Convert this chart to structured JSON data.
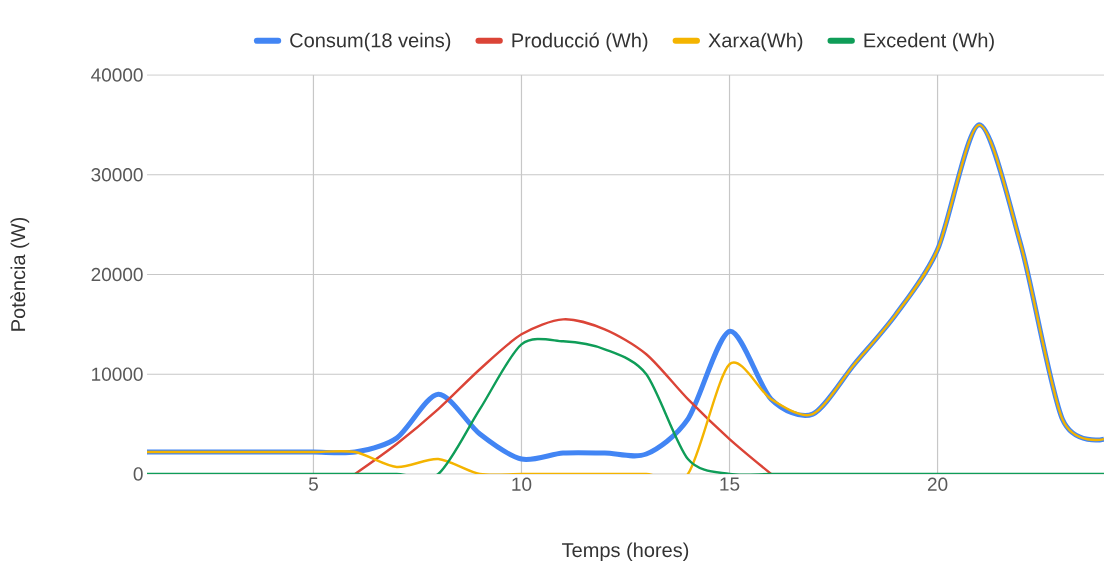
{
  "chart_data": {
    "type": "line",
    "xlabel": "Temps (hores)",
    "ylabel": "Potència (W)",
    "x": [
      1,
      2,
      3,
      4,
      5,
      6,
      7,
      8,
      9,
      10,
      11,
      12,
      13,
      14,
      15,
      16,
      17,
      18,
      19,
      20,
      21,
      22,
      23,
      24
    ],
    "series": [
      {
        "name": "Consum(18 veins)",
        "color": "#4285f4",
        "values": [
          2200,
          2200,
          2200,
          2200,
          2200,
          2200,
          3600,
          8000,
          4000,
          1500,
          2100,
          2100,
          2000,
          5500,
          14300,
          7500,
          6000,
          11000,
          16000,
          22500,
          35000,
          23000,
          5500,
          3500
        ]
      },
      {
        "name": "Producció (Wh)",
        "color": "#db4437",
        "values": [
          null,
          null,
          null,
          null,
          null,
          0,
          3000,
          6500,
          10500,
          14000,
          15500,
          14500,
          12000,
          7500,
          3500,
          0,
          null,
          null,
          null,
          null,
          null,
          null,
          null,
          null
        ]
      },
      {
        "name": "Xarxa(Wh)",
        "color": "#f4b400",
        "values": [
          2200,
          2200,
          2200,
          2200,
          2200,
          2200,
          700,
          1500,
          0,
          0,
          0,
          0,
          0,
          0,
          11000,
          7500,
          6000,
          11000,
          16000,
          22500,
          35000,
          23000,
          5500,
          3500
        ]
      },
      {
        "name": "Excedent (Wh)",
        "color": "#0f9d58",
        "values": [
          0,
          0,
          0,
          0,
          0,
          0,
          0,
          0,
          6500,
          13000,
          13300,
          12500,
          10000,
          1500,
          0,
          0,
          0,
          0,
          0,
          0,
          0,
          0,
          0,
          0
        ]
      }
    ],
    "xlim": [
      1,
      24
    ],
    "ylim": [
      0,
      40000
    ],
    "xticks": [
      5,
      10,
      15,
      20
    ],
    "yticks": [
      0,
      10000,
      20000,
      30000,
      40000
    ],
    "grid": true,
    "legend": "top"
  }
}
